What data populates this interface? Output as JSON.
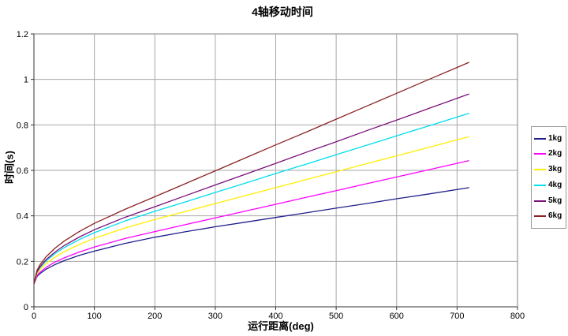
{
  "title": "4轴移动时间",
  "colors": {
    "background": "#FFFFFF",
    "plot_border": "#808080",
    "gridline": "#A6A6A6",
    "axis": "#333333"
  },
  "chart_data": {
    "type": "line",
    "title": "4轴移动时间",
    "xlabel": "运行距离(deg)",
    "ylabel": "时间(s)",
    "xlim": [
      0,
      800
    ],
    "ylim": [
      0,
      1.2
    ],
    "grid": true,
    "legend_position": "right",
    "x_ticks": [
      {
        "value": 0,
        "label": "0"
      },
      {
        "value": 100,
        "label": "100"
      },
      {
        "value": 200,
        "label": "200"
      },
      {
        "value": 300,
        "label": "300"
      },
      {
        "value": 400,
        "label": "400"
      },
      {
        "value": 500,
        "label": "500"
      },
      {
        "value": 600,
        "label": "600"
      },
      {
        "value": 700,
        "label": "700"
      },
      {
        "value": 800,
        "label": "800"
      }
    ],
    "y_ticks": [
      {
        "value": 0,
        "label": "0"
      },
      {
        "value": 0.2,
        "label": "0.2"
      },
      {
        "value": 0.4,
        "label": "0.4"
      },
      {
        "value": 0.6,
        "label": "0.6"
      },
      {
        "value": 0.8,
        "label": "0.8"
      },
      {
        "value": 1.0,
        "label": "1"
      },
      {
        "value": 1.2,
        "label": "1.2"
      }
    ],
    "x": [
      0,
      5,
      10,
      20,
      35,
      50,
      75,
      100,
      150,
      200,
      250,
      300,
      350,
      400,
      450,
      500,
      550,
      600,
      650,
      720
    ],
    "series": [
      {
        "name": "1kg",
        "color": "#1F1F8C",
        "values": [
          0.1,
          0.133,
          0.146,
          0.165,
          0.186,
          0.203,
          0.226,
          0.245,
          0.278,
          0.306,
          0.33,
          0.352,
          0.372,
          0.393,
          0.413,
          0.434,
          0.454,
          0.475,
          0.495,
          0.524
        ]
      },
      {
        "name": "2kg",
        "color": "#FF00FF",
        "values": [
          0.1,
          0.137,
          0.152,
          0.173,
          0.197,
          0.215,
          0.241,
          0.263,
          0.3,
          0.331,
          0.361,
          0.391,
          0.421,
          0.451,
          0.481,
          0.511,
          0.541,
          0.571,
          0.601,
          0.643
        ]
      },
      {
        "name": "3kg",
        "color": "#FFEE00",
        "values": [
          0.1,
          0.145,
          0.164,
          0.19,
          0.219,
          0.242,
          0.274,
          0.301,
          0.346,
          0.384,
          0.419,
          0.454,
          0.489,
          0.524,
          0.559,
          0.594,
          0.629,
          0.664,
          0.699,
          0.748
        ]
      },
      {
        "name": "4kg",
        "color": "#00DDEE",
        "values": [
          0.1,
          0.151,
          0.172,
          0.201,
          0.234,
          0.26,
          0.296,
          0.326,
          0.377,
          0.42,
          0.461,
          0.503,
          0.544,
          0.586,
          0.627,
          0.669,
          0.71,
          0.752,
          0.793,
          0.851
        ]
      },
      {
        "name": "5kg",
        "color": "#7A107A",
        "values": [
          0.1,
          0.153,
          0.176,
          0.207,
          0.241,
          0.269,
          0.307,
          0.339,
          0.393,
          0.44,
          0.488,
          0.536,
          0.583,
          0.631,
          0.679,
          0.726,
          0.774,
          0.821,
          0.869,
          0.936
        ]
      },
      {
        "name": "6kg",
        "color": "#8B2323",
        "values": [
          0.1,
          0.16,
          0.185,
          0.22,
          0.258,
          0.289,
          0.331,
          0.367,
          0.428,
          0.484,
          0.541,
          0.598,
          0.655,
          0.712,
          0.768,
          0.825,
          0.882,
          0.939,
          0.996,
          1.075
        ]
      }
    ]
  }
}
